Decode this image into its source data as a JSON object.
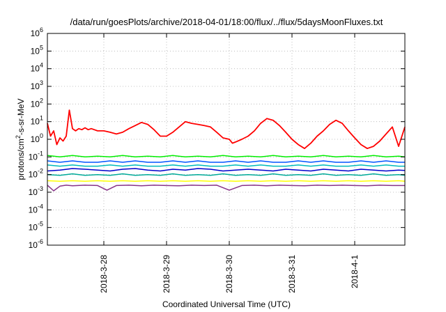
{
  "chart_data": {
    "type": "line",
    "title": "/data/run/goesPlots/archive/2018-04-01/18:00/flux/../flux/5daysMoonFluxes.txt",
    "xlabel": "Coordinated Universal Time (UTC)",
    "ylabel": {
      "prefix": "protons/cm",
      "superscript": "2",
      "suffix": "-s-sr-MeV"
    },
    "yscale": "log",
    "ylim": [
      1e-06,
      1000000.0
    ],
    "y_ticks": [
      {
        "base": "10",
        "exp": "-6",
        "value": 1e-06
      },
      {
        "base": "10",
        "exp": "-5",
        "value": 1e-05
      },
      {
        "base": "10",
        "exp": "-4",
        "value": 0.0001
      },
      {
        "base": "10",
        "exp": "-3",
        "value": 0.001
      },
      {
        "base": "10",
        "exp": "-2",
        "value": 0.01
      },
      {
        "base": "10",
        "exp": "-1",
        "value": 0.1
      },
      {
        "base": "10",
        "exp": "0",
        "value": 1
      },
      {
        "base": "10",
        "exp": "1",
        "value": 10
      },
      {
        "base": "10",
        "exp": "2",
        "value": 100
      },
      {
        "base": "10",
        "exp": "3",
        "value": 1000
      },
      {
        "base": "10",
        "exp": "4",
        "value": 10000
      },
      {
        "base": "10",
        "exp": "5",
        "value": 100000
      },
      {
        "base": "10",
        "exp": "6",
        "value": 1000000
      }
    ],
    "x_unit": "days since 2018-03-27T00:00",
    "xlim": [
      0.1,
      5.8
    ],
    "x_ticks": [
      {
        "label": "2018-3-28",
        "value": 1
      },
      {
        "label": "2018-3-29",
        "value": 2
      },
      {
        "label": "2018-3-30",
        "value": 3
      },
      {
        "label": "2018-3-31",
        "value": 4
      },
      {
        "label": "2018-4-1",
        "value": 5
      }
    ],
    "grid": true,
    "series": [
      {
        "color": "#ff0000",
        "x": [
          0.1,
          0.15,
          0.2,
          0.25,
          0.3,
          0.35,
          0.4,
          0.45,
          0.5,
          0.55,
          0.6,
          0.65,
          0.7,
          0.75,
          0.8,
          0.9,
          1.0,
          1.1,
          1.2,
          1.3,
          1.4,
          1.5,
          1.6,
          1.7,
          1.8,
          1.9,
          2.0,
          2.1,
          2.2,
          2.3,
          2.4,
          2.5,
          2.6,
          2.7,
          2.8,
          2.9,
          3.0,
          3.05,
          3.1,
          3.2,
          3.3,
          3.4,
          3.5,
          3.6,
          3.7,
          3.8,
          3.9,
          4.0,
          4.1,
          4.2,
          4.3,
          4.4,
          4.5,
          4.6,
          4.7,
          4.8,
          4.9,
          5.0,
          5.1,
          5.2,
          5.3,
          5.4,
          5.5,
          5.6,
          5.7,
          5.8
        ],
        "y": [
          8,
          1.5,
          3,
          0.5,
          1.2,
          0.8,
          1.5,
          45,
          4,
          3,
          4,
          3.5,
          4.5,
          3.5,
          4,
          3,
          3,
          2.5,
          2,
          2.5,
          4,
          6,
          9,
          7,
          3.5,
          1.5,
          1.5,
          2.5,
          5,
          10,
          8,
          7,
          6,
          5,
          2.5,
          1.2,
          1,
          0.6,
          0.7,
          1,
          1.5,
          3,
          8,
          15,
          12,
          6,
          2.5,
          1,
          0.5,
          0.3,
          0.6,
          1.5,
          3,
          7,
          12,
          8,
          3,
          1.2,
          0.5,
          0.3,
          0.4,
          0.8,
          2,
          5,
          0.4,
          5
        ]
      },
      {
        "color": "#00ee00",
        "x": [
          0.1,
          0.3,
          0.5,
          0.7,
          0.9,
          1.1,
          1.3,
          1.5,
          1.7,
          1.9,
          2.1,
          2.3,
          2.5,
          2.7,
          2.9,
          3.1,
          3.3,
          3.5,
          3.7,
          3.9,
          4.1,
          4.3,
          4.5,
          4.7,
          4.9,
          5.1,
          5.3,
          5.5,
          5.7,
          5.8
        ],
        "y": [
          0.12,
          0.1,
          0.12,
          0.1,
          0.11,
          0.1,
          0.12,
          0.1,
          0.11,
          0.1,
          0.12,
          0.1,
          0.11,
          0.1,
          0.12,
          0.1,
          0.11,
          0.1,
          0.12,
          0.1,
          0.11,
          0.1,
          0.12,
          0.1,
          0.11,
          0.1,
          0.12,
          0.1,
          0.11,
          0.1
        ]
      },
      {
        "color": "#0055ff",
        "x": [
          0.1,
          0.3,
          0.5,
          0.7,
          0.9,
          1.1,
          1.3,
          1.5,
          1.7,
          1.9,
          2.1,
          2.3,
          2.5,
          2.7,
          2.9,
          3.1,
          3.3,
          3.5,
          3.7,
          3.9,
          4.1,
          4.3,
          4.5,
          4.7,
          4.9,
          5.1,
          5.3,
          5.5,
          5.7,
          5.8
        ],
        "y": [
          0.06,
          0.05,
          0.06,
          0.05,
          0.05,
          0.06,
          0.05,
          0.06,
          0.05,
          0.05,
          0.06,
          0.05,
          0.06,
          0.05,
          0.05,
          0.06,
          0.05,
          0.06,
          0.05,
          0.05,
          0.06,
          0.05,
          0.06,
          0.05,
          0.05,
          0.06,
          0.05,
          0.06,
          0.05,
          0.05
        ]
      },
      {
        "color": "#00bbbb",
        "x": [
          0.1,
          0.3,
          0.5,
          0.7,
          0.9,
          1.1,
          1.3,
          1.5,
          1.7,
          1.9,
          2.1,
          2.3,
          2.5,
          2.7,
          2.9,
          3.1,
          3.3,
          3.5,
          3.7,
          3.9,
          4.1,
          4.3,
          4.5,
          4.7,
          4.9,
          5.1,
          5.3,
          5.5,
          5.7,
          5.8
        ],
        "y": [
          0.035,
          0.03,
          0.035,
          0.03,
          0.03,
          0.035,
          0.03,
          0.035,
          0.03,
          0.03,
          0.035,
          0.03,
          0.035,
          0.03,
          0.03,
          0.035,
          0.03,
          0.035,
          0.03,
          0.03,
          0.035,
          0.03,
          0.035,
          0.03,
          0.03,
          0.035,
          0.03,
          0.035,
          0.03,
          0.03
        ]
      },
      {
        "color": "#0000cc",
        "x": [
          0.1,
          0.3,
          0.5,
          0.7,
          0.9,
          1.1,
          1.3,
          1.5,
          1.7,
          1.9,
          2.1,
          2.3,
          2.5,
          2.7,
          2.9,
          3.1,
          3.3,
          3.5,
          3.7,
          3.9,
          4.1,
          4.3,
          4.5,
          4.7,
          4.9,
          5.1,
          5.3,
          5.5,
          5.7,
          5.8
        ],
        "y": [
          0.016,
          0.018,
          0.022,
          0.02,
          0.018,
          0.016,
          0.02,
          0.022,
          0.018,
          0.016,
          0.02,
          0.018,
          0.022,
          0.02,
          0.016,
          0.018,
          0.02,
          0.018,
          0.016,
          0.02,
          0.018,
          0.016,
          0.02,
          0.018,
          0.016,
          0.02,
          0.018,
          0.016,
          0.018,
          0.017
        ]
      },
      {
        "color": "#00aa99",
        "x": [
          0.1,
          0.3,
          0.5,
          0.7,
          0.9,
          1.1,
          1.3,
          1.5,
          1.7,
          1.9,
          2.1,
          2.3,
          2.5,
          2.7,
          2.9,
          3.1,
          3.3,
          3.5,
          3.7,
          3.9,
          4.1,
          4.3,
          4.5,
          4.7,
          4.9,
          5.1,
          5.3,
          5.5,
          5.7,
          5.8
        ],
        "y": [
          0.01,
          0.009,
          0.011,
          0.009,
          0.01,
          0.009,
          0.011,
          0.009,
          0.01,
          0.009,
          0.011,
          0.009,
          0.01,
          0.009,
          0.011,
          0.009,
          0.01,
          0.009,
          0.011,
          0.009,
          0.01,
          0.009,
          0.011,
          0.009,
          0.01,
          0.009,
          0.011,
          0.009,
          0.01,
          0.009
        ]
      },
      {
        "color": "#ffff00",
        "x": [
          0.1,
          0.3,
          0.5,
          0.7,
          0.9,
          1.1,
          1.3,
          1.5,
          1.7,
          1.9,
          2.1,
          2.3,
          2.5,
          2.7,
          2.9,
          3.1,
          3.3,
          3.5,
          3.7,
          3.9,
          4.1,
          4.3,
          4.5,
          4.7,
          4.9,
          5.1,
          5.3,
          5.5,
          5.7,
          5.8
        ],
        "y": [
          0.0045,
          0.0042,
          0.0045,
          0.0042,
          0.0045,
          0.0042,
          0.0045,
          0.0042,
          0.0045,
          0.0042,
          0.0045,
          0.0042,
          0.0045,
          0.0042,
          0.0045,
          0.0042,
          0.0045,
          0.0042,
          0.0045,
          0.0042,
          0.0045,
          0.0042,
          0.0045,
          0.0042,
          0.0045,
          0.0042,
          0.0045,
          0.0042,
          0.0045,
          0.0042
        ]
      },
      {
        "color": "#883388",
        "x": [
          0.1,
          0.2,
          0.3,
          0.4,
          0.5,
          0.7,
          0.9,
          1.05,
          1.2,
          1.4,
          1.6,
          1.8,
          2.0,
          2.2,
          2.4,
          2.6,
          2.8,
          3.0,
          3.2,
          3.4,
          3.6,
          3.8,
          4.0,
          4.2,
          4.4,
          4.6,
          4.8,
          5.0,
          5.2,
          5.4,
          5.6,
          5.8
        ],
        "y": [
          0.0025,
          0.0012,
          0.0022,
          0.0025,
          0.0023,
          0.0025,
          0.0024,
          0.0013,
          0.0024,
          0.0025,
          0.0023,
          0.0025,
          0.0024,
          0.0023,
          0.0025,
          0.0024,
          0.0025,
          0.0013,
          0.0024,
          0.0025,
          0.0023,
          0.0025,
          0.0024,
          0.0023,
          0.0025,
          0.0024,
          0.0025,
          0.0024,
          0.0023,
          0.0025,
          0.0024,
          0.0024
        ]
      }
    ]
  }
}
